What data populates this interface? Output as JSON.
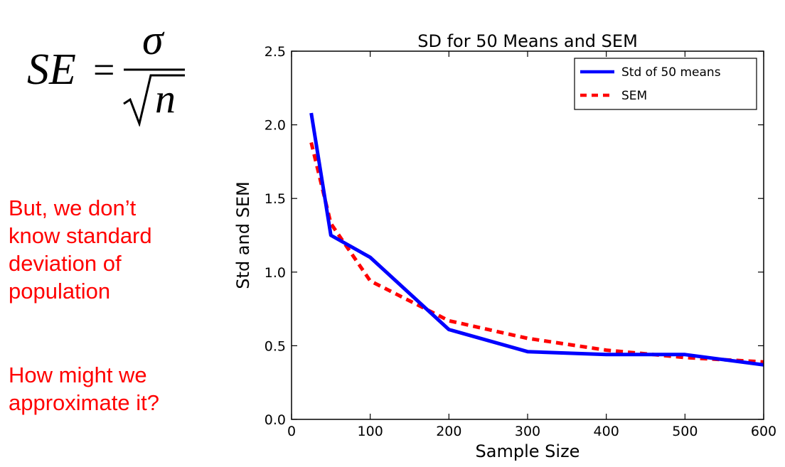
{
  "formula": {
    "lhs": "SE",
    "equals": "=",
    "numerator": "σ",
    "radicand": "n"
  },
  "note": {
    "lines": [
      "But, we don’t",
      "know standard",
      "deviation of",
      "population"
    ],
    "question_lines": [
      "How might we",
      "approximate it?"
    ],
    "color": "#ff0000"
  },
  "chart_data": {
    "type": "line",
    "title": "SD for 50 Means and SEM",
    "xlabel": "Sample Size",
    "ylabel": "Std and SEM",
    "xlim": [
      0,
      600
    ],
    "ylim": [
      0.0,
      2.5
    ],
    "xticks": [
      0,
      100,
      200,
      300,
      400,
      500,
      600
    ],
    "xtick_labels": [
      "0",
      "100",
      "200",
      "300",
      "400",
      "500",
      "600"
    ],
    "yticks": [
      0.0,
      0.5,
      1.0,
      1.5,
      2.0,
      2.5
    ],
    "ytick_labels": [
      "0.0",
      "0.5",
      "1.0",
      "1.5",
      "2.0",
      "2.5"
    ],
    "grid": false,
    "legend_position": "top-right",
    "series": [
      {
        "name": "Std of 50 means",
        "color": "#0000ff",
        "style": "solid",
        "x": [
          25,
          50,
          100,
          200,
          300,
          400,
          500,
          600
        ],
        "y": [
          2.08,
          1.25,
          1.1,
          0.61,
          0.46,
          0.44,
          0.44,
          0.37
        ]
      },
      {
        "name": "SEM",
        "color": "#ff0000",
        "style": "dashed",
        "x": [
          25,
          50,
          100,
          200,
          300,
          400,
          500,
          600
        ],
        "y": [
          1.88,
          1.33,
          0.94,
          0.67,
          0.55,
          0.47,
          0.42,
          0.39
        ]
      }
    ]
  }
}
